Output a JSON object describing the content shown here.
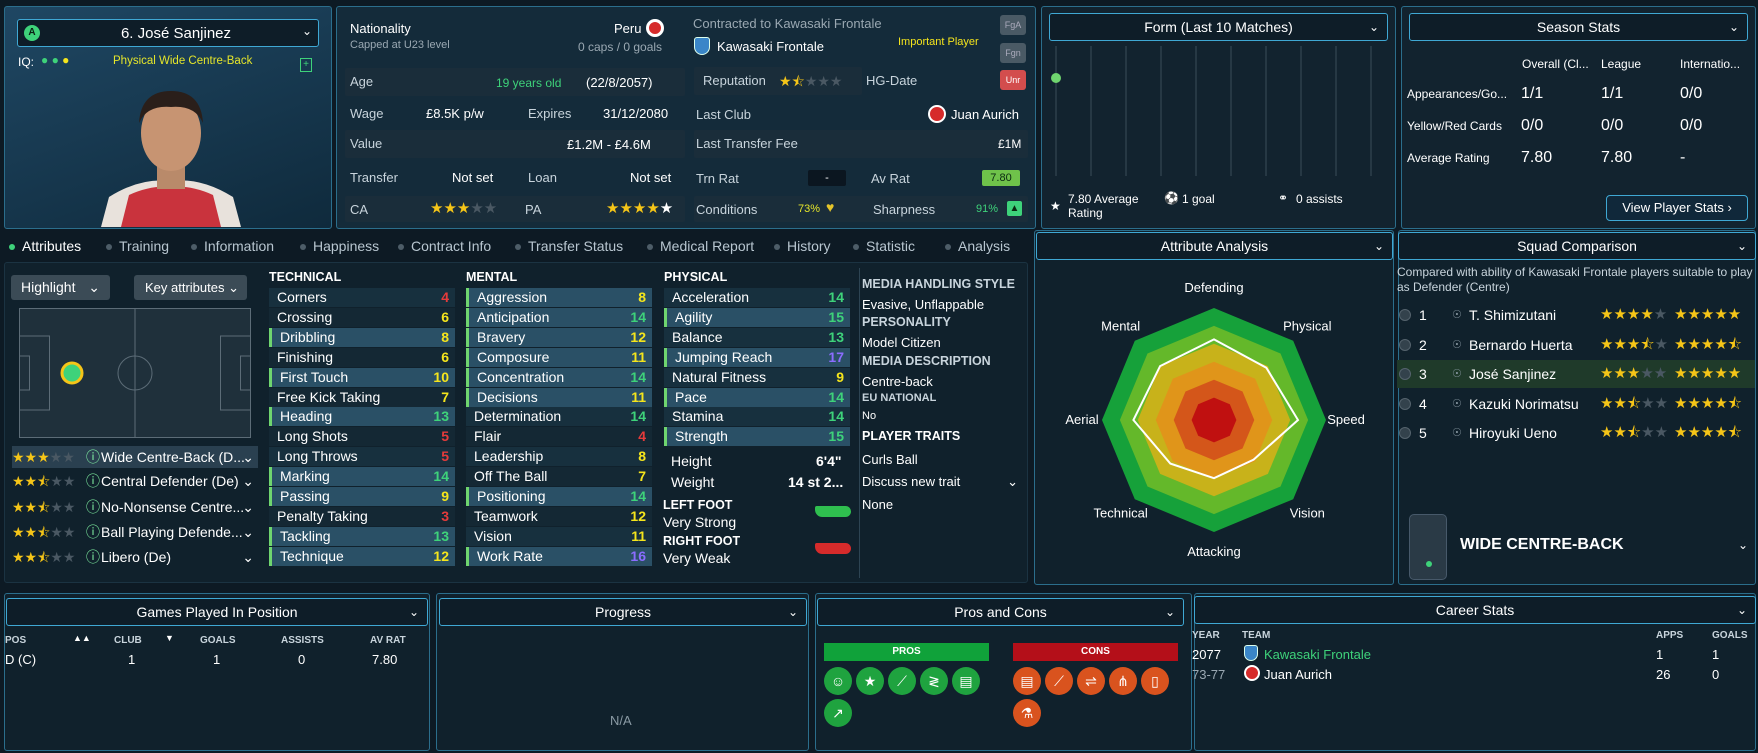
{
  "player": {
    "name": "6. José Sanjinez",
    "role": "Physical Wide Centre-Back",
    "iq_label": "IQ:",
    "badge": "A"
  },
  "info": {
    "nationality_label": "Nationality",
    "nationality": "Peru",
    "capped": "Capped at U23 level",
    "caps": "0 caps / 0 goals",
    "contract": "Contracted to Kawasaki Frontale",
    "club": "Kawasaki Frontale",
    "status": "Important Player",
    "fga": "FgA",
    "fgn": "Fgn",
    "unr": "Unr",
    "age_label": "Age",
    "age": "19 years old",
    "dob": "(22/8/2057)",
    "rep_label": "Reputation",
    "rep_stars": 1.5,
    "hg_label": "HG-Date",
    "wage_label": "Wage",
    "wage": "£8.5K p/w",
    "expires_label": "Expires",
    "expires": "31/12/2080",
    "last_club_label": "Last Club",
    "last_club": "Juan Aurich",
    "value_label": "Value",
    "value": "£1.2M - £4.6M",
    "ltf_label": "Last Transfer Fee",
    "ltf": "£1M",
    "transfer_label": "Transfer",
    "transfer": "Not set",
    "loan_label": "Loan",
    "loan": "Not set",
    "trn_label": "Trn Rat",
    "trn": "-",
    "av_label": "Av Rat",
    "av": "7.80",
    "ca_label": "CA",
    "ca_stars": 3,
    "pa_label": "PA",
    "pa_stars": 5,
    "cond_label": "Conditions",
    "cond": "73%",
    "sharp_label": "Sharpness",
    "sharp": "91%"
  },
  "form": {
    "title": "Form (Last 10 Matches)",
    "avg": "7.80 Average Rating",
    "goals": "1 goal",
    "assists": "0 assists",
    "rating": 7.8
  },
  "season": {
    "title": "Season Stats",
    "cols": [
      "Overall (Cl...",
      "League",
      "Internatio..."
    ],
    "rows": [
      {
        "label": "Appearances/Go...",
        "v": [
          "1/1",
          "1/1",
          "0/0"
        ]
      },
      {
        "label": "Yellow/Red Cards",
        "v": [
          "0/0",
          "0/0",
          "0/0"
        ]
      },
      {
        "label": "Average Rating",
        "v": [
          "7.80",
          "7.80",
          "-"
        ]
      }
    ],
    "button": "View Player Stats"
  },
  "tabs": [
    "Attributes",
    "Training",
    "Information",
    "Happiness",
    "Contract Info",
    "Transfer Status",
    "Medical Report",
    "History",
    "Statistic",
    "Analysis"
  ],
  "controls": {
    "highlight": "Highlight",
    "key": "Key attributes"
  },
  "positions": [
    {
      "stars": 3,
      "label": "Wide Centre-Back (D..."
    },
    {
      "stars": 2.5,
      "label": "Central Defender (De)"
    },
    {
      "stars": 2.5,
      "label": "No-Nonsense Centre..."
    },
    {
      "stars": 2.5,
      "label": "Ball Playing Defende..."
    },
    {
      "stars": 2.5,
      "label": "Libero (De)"
    }
  ],
  "technical": {
    "title": "TECHNICAL",
    "attrs": [
      [
        "Corners",
        4
      ],
      [
        "Crossing",
        6
      ],
      [
        "Dribbling",
        8
      ],
      [
        "Finishing",
        6
      ],
      [
        "First Touch",
        10
      ],
      [
        "Free Kick Taking",
        7
      ],
      [
        "Heading",
        13
      ],
      [
        "Long Shots",
        5
      ],
      [
        "Long Throws",
        5
      ],
      [
        "Marking",
        14
      ],
      [
        "Passing",
        9
      ],
      [
        "Penalty Taking",
        3
      ],
      [
        "Tackling",
        13
      ],
      [
        "Technique",
        12
      ]
    ]
  },
  "mental": {
    "title": "MENTAL",
    "attrs": [
      [
        "Aggression",
        8
      ],
      [
        "Anticipation",
        14
      ],
      [
        "Bravery",
        12
      ],
      [
        "Composure",
        11
      ],
      [
        "Concentration",
        14
      ],
      [
        "Decisions",
        11
      ],
      [
        "Determination",
        14
      ],
      [
        "Flair",
        4
      ],
      [
        "Leadership",
        8
      ],
      [
        "Off The Ball",
        7
      ],
      [
        "Positioning",
        14
      ],
      [
        "Teamwork",
        12
      ],
      [
        "Vision",
        11
      ],
      [
        "Work Rate",
        16
      ]
    ]
  },
  "physical": {
    "title": "PHYSICAL",
    "attrs": [
      [
        "Acceleration",
        14
      ],
      [
        "Agility",
        15
      ],
      [
        "Balance",
        13
      ],
      [
        "Jumping Reach",
        17
      ],
      [
        "Natural Fitness",
        9
      ],
      [
        "Pace",
        14
      ],
      [
        "Stamina",
        14
      ],
      [
        "Strength",
        15
      ]
    ],
    "height_label": "Height",
    "height": "6'4\"",
    "weight_label": "Weight",
    "weight": "14 st 2...",
    "left_label": "LEFT FOOT",
    "left": "Very Strong",
    "right_label": "RIGHT FOOT",
    "right": "Very Weak"
  },
  "media": {
    "mhs_title": "MEDIA HANDLING STYLE",
    "mhs": "Evasive, Unflappable",
    "pers_title": "PERSONALITY",
    "pers": "Model Citizen",
    "desc_title": "MEDIA DESCRIPTION",
    "desc": "Centre-back",
    "eu_title": "EU NATIONAL",
    "eu": "No",
    "traits_title": "PLAYER TRAITS",
    "trait1": "Curls Ball",
    "discuss": "Discuss new trait",
    "none": "None"
  },
  "analysis": {
    "title": "Attribute Analysis",
    "labels": [
      "Defending",
      "Physical",
      "Speed",
      "Vision",
      "Attacking",
      "Technical",
      "Aerial",
      "Mental"
    ],
    "values": [
      0.72,
      0.66,
      0.75,
      0.5,
      0.52,
      0.55,
      0.72,
      0.68
    ]
  },
  "squad": {
    "title": "Squad Comparison",
    "desc": "Compared with ability of Kawasaki Frontale players suitable to play as Defender (Centre)",
    "rows": [
      {
        "n": "1",
        "name": "T. Shimizutani",
        "ca": 4,
        "pa": 5
      },
      {
        "n": "2",
        "name": "Bernardo Huerta",
        "ca": 3.5,
        "pa": 4.5
      },
      {
        "n": "3",
        "name": "José Sanjinez",
        "ca": 3,
        "pa": 5
      },
      {
        "n": "4",
        "name": "Kazuki Norimatsu",
        "ca": 2.5,
        "pa": 4.5
      },
      {
        "n": "5",
        "name": "Hiroyuki Ueno",
        "ca": 2.5,
        "pa": 4.5
      }
    ],
    "position": "WIDE CENTRE-BACK"
  },
  "gpp": {
    "title": "Games Played In Position",
    "cols": [
      "POS",
      "CLUB",
      "GOALS",
      "ASSISTS",
      "AV RAT"
    ],
    "row": [
      "D (C)",
      "1",
      "1",
      "0",
      "7.80"
    ]
  },
  "progress": {
    "title": "Progress",
    "na": "N/A"
  },
  "proscons": {
    "title": "Pros and Cons",
    "pros": "PROS",
    "cons": "CONS"
  },
  "career": {
    "title": "Career Stats",
    "cols": [
      "YEAR",
      "TEAM",
      "APPS",
      "GOALS"
    ],
    "rows": [
      {
        "year": "2077",
        "team": "Kawasaki Frontale",
        "apps": "1",
        "goals": "1"
      },
      {
        "year": "73-77",
        "team": "Juan Aurich",
        "apps": "26",
        "goals": "0"
      }
    ]
  },
  "colors": {
    "accent": "#3fa8d4",
    "green": "#3ed27a",
    "yellow": "#f5e51c"
  }
}
